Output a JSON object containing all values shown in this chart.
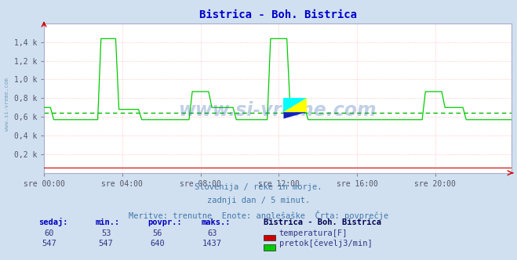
{
  "title": "Bistrica - Boh. Bistrica",
  "title_color": "#0000cc",
  "bg_color": "#d0e0f0",
  "plot_bg_color": "#ffffff",
  "grid_color": "#ffbbbb",
  "watermark": "www.si-vreme.com",
  "subtitle_lines": [
    "Slovenija / reke in morje.",
    "zadnji dan / 5 minut.",
    "Meritve: trenutne  Enote: anglešaške  Črta: povprečje"
  ],
  "xlabel_ticks": [
    "sre 00:00",
    "sre 04:00",
    "sre 08:00",
    "sre 12:00",
    "sre 16:00",
    "sre 20:00"
  ],
  "xlabel_tick_positions": [
    0,
    48,
    96,
    144,
    192,
    240
  ],
  "total_points": 288,
  "ylim": [
    0,
    1600
  ],
  "yticks": [
    200,
    400,
    600,
    800,
    1000,
    1200,
    1400
  ],
  "ytick_labels": [
    "0,2 k",
    "0,4 k",
    "0,6 k",
    "0,8 k",
    "1,0 k",
    "1,2 k",
    "1,4 k"
  ],
  "avg_line_value": 640,
  "avg_line_color": "#00bb00",
  "temp_color": "#cc0000",
  "flow_color": "#00cc00",
  "temp_sedaj": 60,
  "temp_min": 53,
  "temp_povpr": 56,
  "temp_maks": 63,
  "flow_sedaj": 547,
  "flow_min": 547,
  "flow_povpr": 640,
  "flow_maks": 1437,
  "table_header_color": "#0000bb",
  "table_value_color": "#333388",
  "legend_title": "Bistrica - Boh. Bistrica",
  "legend_title_color": "#000055",
  "left_watermark_color": "#5588aa",
  "center_watermark_color": "#3366aa"
}
